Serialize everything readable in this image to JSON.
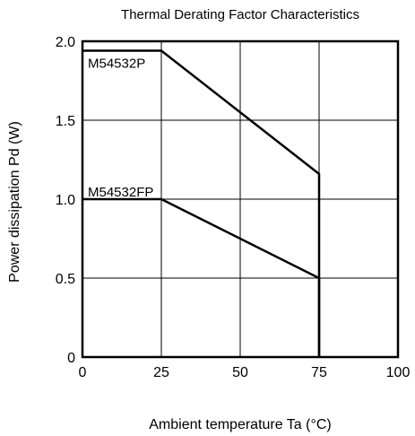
{
  "chart_data": {
    "type": "line",
    "title": "Thermal Derating Factor Characteristics",
    "xlabel": "Ambient temperature  Ta (°C)",
    "ylabel": "Power dissipation  Pd (W)",
    "xlim": [
      0,
      100
    ],
    "ylim": [
      0,
      2.0
    ],
    "x_ticks": [
      0,
      25,
      50,
      75,
      100
    ],
    "y_ticks": [
      0,
      0.5,
      1.0,
      1.5,
      2.0
    ],
    "x_tick_labels": [
      "0",
      "25",
      "50",
      "75",
      "100"
    ],
    "y_tick_labels": [
      "0",
      "0.5",
      "1.0",
      "1.5",
      "2.0"
    ],
    "grid": true,
    "series": [
      {
        "name": "M54532P",
        "x": [
          0,
          25,
          75,
          75
        ],
        "y": [
          1.94,
          1.94,
          1.16,
          0
        ]
      },
      {
        "name": "M54532FP",
        "x": [
          0,
          25,
          75,
          75
        ],
        "y": [
          1.0,
          1.0,
          0.5,
          0
        ]
      }
    ]
  }
}
